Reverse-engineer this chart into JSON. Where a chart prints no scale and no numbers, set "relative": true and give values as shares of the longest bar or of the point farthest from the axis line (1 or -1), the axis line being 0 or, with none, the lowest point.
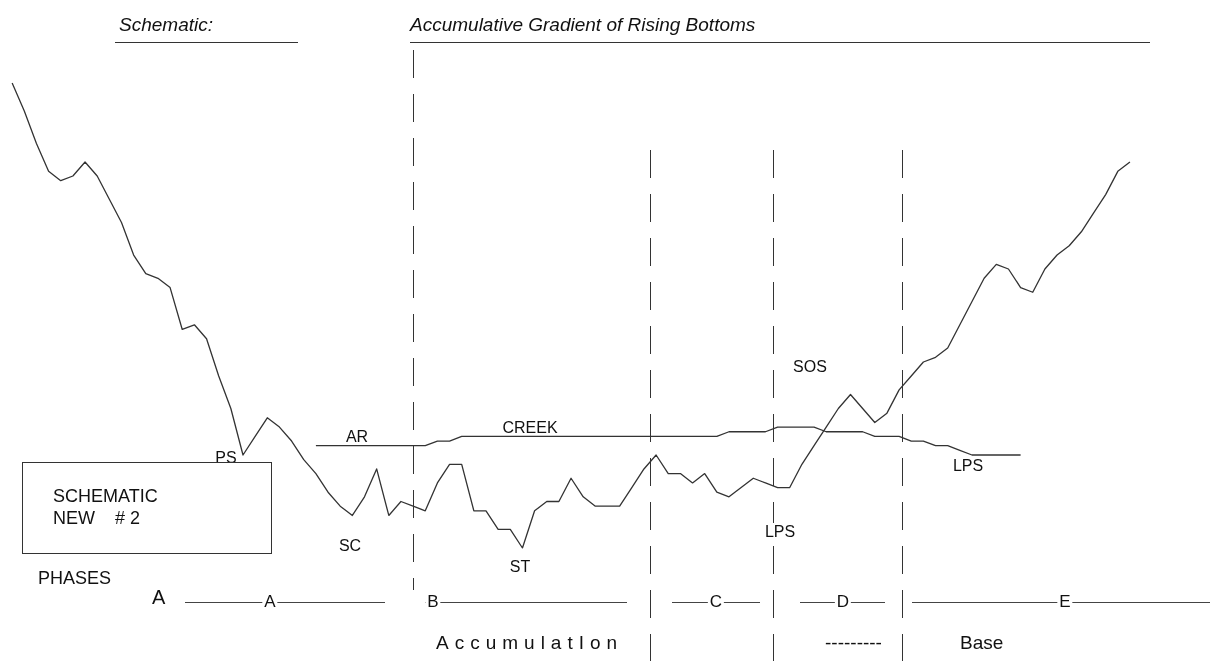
{
  "chart_data": {
    "type": "line",
    "title": "Accumulative Gradient of Rising Bottoms",
    "subtitle": "Schematic:",
    "relative": true,
    "marker": "none",
    "line_style": "solid",
    "categories": [
      null,
      null,
      null,
      null,
      null,
      null,
      null,
      null,
      null,
      null,
      null,
      null,
      null,
      null,
      null,
      null,
      null,
      null,
      null,
      null,
      null,
      null,
      null,
      null,
      null,
      null,
      null,
      null,
      null,
      null,
      null,
      null,
      null,
      null,
      null,
      null,
      null,
      null,
      null,
      null,
      null,
      null,
      null,
      null,
      null,
      null,
      null,
      null,
      null,
      null,
      null,
      null,
      null,
      null,
      null,
      null,
      null,
      null,
      null,
      null,
      null,
      null,
      null,
      null,
      null,
      null,
      null,
      null,
      null,
      null,
      null,
      null,
      null,
      null,
      null,
      null,
      null,
      null,
      null,
      null,
      null,
      null,
      null,
      null,
      null,
      null,
      null,
      null,
      null,
      null,
      null,
      null,
      null,
      null,
      null,
      null,
      null,
      null,
      null,
      null,
      null
    ],
    "series": [
      {
        "color": "#333333",
        "values": [
          null,
          1.0,
          0.94,
          0.87,
          0.81,
          0.79,
          0.8,
          0.83,
          0.8,
          0.75,
          0.7,
          0.63,
          0.59,
          0.58,
          0.56,
          0.47,
          0.48,
          0.45,
          0.37,
          0.3,
          0.2,
          0.24,
          0.28,
          0.26,
          0.23,
          0.19,
          0.16,
          0.12,
          0.09,
          0.07,
          0.11,
          0.17,
          0.07,
          0.1,
          0.09,
          0.08,
          0.14,
          0.18,
          0.18,
          0.08,
          0.08,
          0.04,
          0.04,
          0.0,
          0.08,
          0.1,
          0.1,
          0.15,
          0.11,
          0.09,
          0.09,
          0.09,
          0.13,
          0.17,
          0.2,
          0.16,
          0.16,
          0.14,
          0.16,
          0.12,
          0.11,
          0.13,
          0.15,
          0.14,
          0.13,
          0.13,
          0.18,
          0.22,
          0.26,
          0.3,
          0.33,
          0.3,
          0.27,
          0.29,
          0.34,
          0.37,
          0.4,
          0.41,
          0.43,
          0.48,
          0.53,
          0.58,
          0.61,
          0.6,
          0.56,
          0.55,
          0.6,
          0.63,
          0.65,
          0.68,
          0.72,
          0.76,
          0.81,
          0.83,
          null,
          null,
          null,
          null,
          null,
          null,
          null
        ]
      },
      {
        "color": "#333333",
        "values": [
          null,
          null,
          null,
          null,
          null,
          null,
          null,
          null,
          null,
          null,
          null,
          null,
          null,
          null,
          null,
          null,
          null,
          null,
          null,
          null,
          null,
          null,
          null,
          null,
          null,
          null,
          0.22,
          0.22,
          0.22,
          0.22,
          0.22,
          0.22,
          0.22,
          0.22,
          0.22,
          0.22,
          0.23,
          0.23,
          0.24,
          0.24,
          0.24,
          0.24,
          0.24,
          0.24,
          0.24,
          0.24,
          0.24,
          0.24,
          0.24,
          0.24,
          0.24,
          0.24,
          0.24,
          0.24,
          0.24,
          0.24,
          0.24,
          0.24,
          0.24,
          0.24,
          0.25,
          0.25,
          0.25,
          0.25,
          0.26,
          0.26,
          0.26,
          0.26,
          0.25,
          0.25,
          0.25,
          0.25,
          0.24,
          0.24,
          0.24,
          0.23,
          0.23,
          0.22,
          0.22,
          0.21,
          0.2,
          0.2,
          0.2,
          0.2,
          0.2,
          null,
          null,
          null,
          null,
          null,
          null,
          null,
          null,
          null,
          null,
          null,
          null,
          null,
          null,
          null,
          null
        ]
      }
    ],
    "annotations": [
      "PS",
      "SC",
      "AR",
      "CREEK",
      "ST",
      "SOS",
      "LPS",
      "LPS",
      "SCHEMATIC\nNEW    # 2",
      "PHASES",
      "A",
      "A",
      "B",
      "C",
      "D",
      "E",
      "AccumulatIon",
      "---------",
      "Base"
    ]
  }
}
